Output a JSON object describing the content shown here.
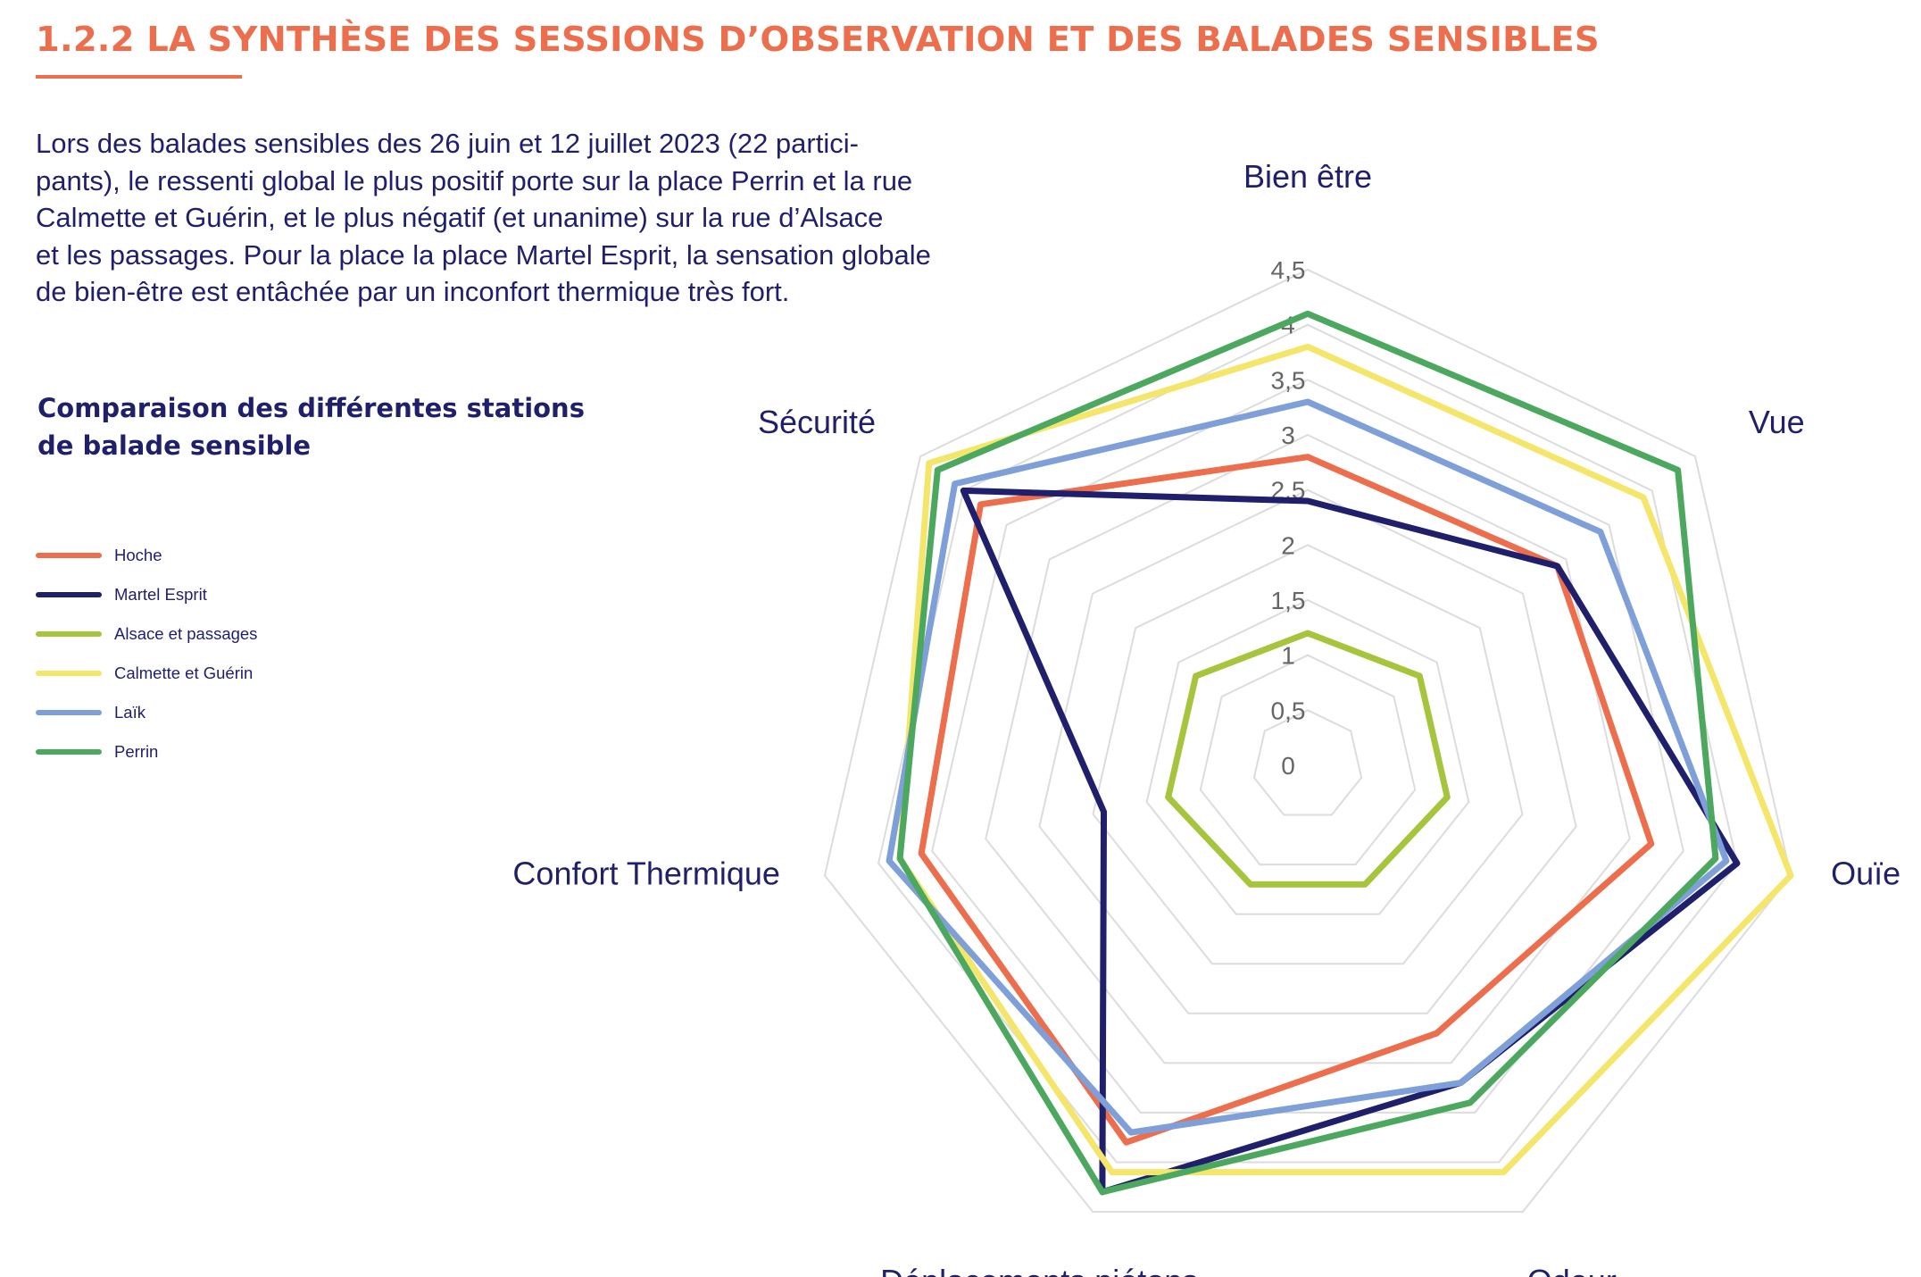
{
  "heading": "1.2.2 LA SYNTHÈSE DES SESSIONS D’OBSERVATION ET DES BALADES SENSIBLES",
  "intro": [
    "Lors des balades sensibles des 26 juin et 12 juillet 2023 (22 partici-",
    "pants), le ressenti global le plus positif porte sur la place Perrin et la rue",
    "Calmette et Guérin, et le plus  négatif (et unanime) sur la rue d’Alsace",
    "et les passages. Pour la place la place Martel Esprit, la sensation globale",
    "de bien-être est entâchée par un inconfort thermique très fort."
  ],
  "subtitle": "Comparaison des différentes stations de balade sensible",
  "chart_data": {
    "type": "radar",
    "axes": [
      "Bien être",
      "Vue",
      "Ouïe",
      "Odeur",
      "Déplacements piétons",
      "Confort Thermique",
      "Sécurité"
    ],
    "ticks": [
      "0",
      "0,5",
      "1",
      "1,5",
      "2",
      "2,5",
      "3",
      "3,5",
      "4",
      "4,5"
    ],
    "rmax": 4.5,
    "grid": true,
    "legend_position": "left",
    "series": [
      {
        "name": "Hoche",
        "color": "#ec6e4c",
        "values": [
          2.8,
          2.9,
          3.2,
          2.7,
          3.8,
          3.6,
          3.8
        ]
      },
      {
        "name": "Martel Esprit",
        "color": "#1f1f6b",
        "values": [
          2.4,
          2.9,
          4.0,
          3.2,
          4.3,
          1.9,
          4.0
        ]
      },
      {
        "name": "Alsace et passages",
        "color": "#a6c43c",
        "values": [
          1.2,
          1.3,
          1.3,
          1.2,
          1.2,
          1.3,
          1.3
        ]
      },
      {
        "name": "Calmette et Guérin",
        "color": "#f4e66a",
        "values": [
          3.8,
          3.9,
          4.5,
          4.1,
          4.1,
          3.8,
          4.4
        ]
      },
      {
        "name": "Laïk",
        "color": "#7f9fd8",
        "values": [
          3.3,
          3.4,
          3.9,
          3.2,
          3.7,
          3.9,
          4.1
        ]
      },
      {
        "name": "Perrin",
        "color": "#4ba85e",
        "values": [
          4.1,
          4.3,
          3.8,
          3.4,
          4.3,
          3.8,
          4.3
        ]
      }
    ]
  }
}
